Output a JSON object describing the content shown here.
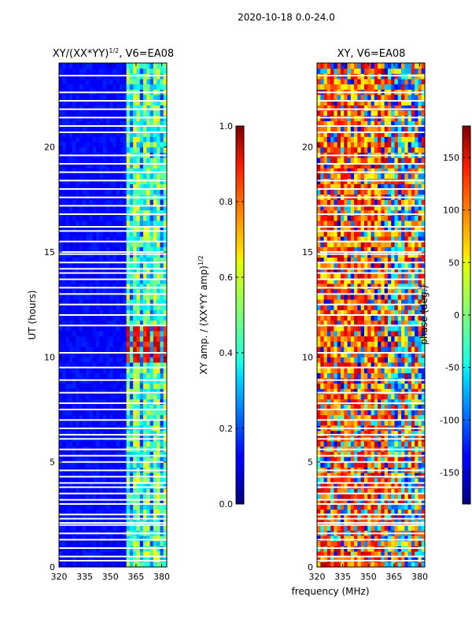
{
  "suptitle": "2020-10-18 0.0-24.0",
  "chart_data": [
    {
      "type": "heatmap",
      "title": "XY/(XX*YY)",
      "title_exponent": "1/2",
      "title_suffix": ", V6=EA08",
      "xlabel": "",
      "ylabel": "UT (hours)",
      "xlim": [
        320,
        383
      ],
      "ylim": [
        0,
        24
      ],
      "x_ticks": [
        320,
        335,
        350,
        365,
        380
      ],
      "y_ticks": [
        0,
        5,
        10,
        15,
        20
      ],
      "colorbar": {
        "label": "XY amp. / (XX*YY amp)",
        "label_exponent": "1/2",
        "range": [
          0.0,
          1.0
        ],
        "ticks": [
          "0.0",
          "0.2",
          "0.4",
          "0.6",
          "0.8",
          "1.0"
        ],
        "colormap": "jet"
      },
      "features": {
        "background_value": 0.1,
        "high_band_mhz": [
          359,
          383
        ],
        "high_band_value": 0.55,
        "peak_hours": [
          9.8,
          11.5
        ],
        "peak_value": 0.9
      }
    },
    {
      "type": "heatmap",
      "title": "XY, V6=EA08",
      "xlabel": "frequency (MHz)",
      "ylabel": "",
      "xlim": [
        320,
        383
      ],
      "ylim": [
        0,
        24
      ],
      "x_ticks": [
        320,
        335,
        350,
        365,
        380
      ],
      "y_ticks": [
        0,
        5,
        10,
        15,
        20
      ],
      "colorbar": {
        "label": "phase (deg.)",
        "range": [
          -180,
          180
        ],
        "ticks": [
          "-150",
          "-100",
          "-50",
          "0",
          "50",
          "100",
          "150"
        ],
        "colormap": "jet"
      }
    }
  ],
  "flagged_hours": [
    0.3,
    0.5,
    0.9,
    1.3,
    1.6,
    2.0,
    2.1,
    2.3,
    2.5,
    3.0,
    3.2,
    3.5,
    3.8,
    4.0,
    4.3,
    4.6,
    5.0,
    5.3,
    5.6,
    6.1,
    6.3,
    6.6,
    7.0,
    7.5,
    7.8,
    8.3,
    8.9,
    9.5,
    10.2,
    11.5,
    12.0,
    12.5,
    13.0,
    13.3,
    13.7,
    14.0,
    14.2,
    14.5,
    14.9,
    15.0,
    15.5,
    16.0,
    16.2,
    16.8,
    17.2,
    17.6,
    18.0,
    18.4,
    18.8,
    19.2,
    19.6,
    20.7,
    21.0,
    21.4,
    21.8,
    22.2,
    22.6,
    23.4
  ]
}
